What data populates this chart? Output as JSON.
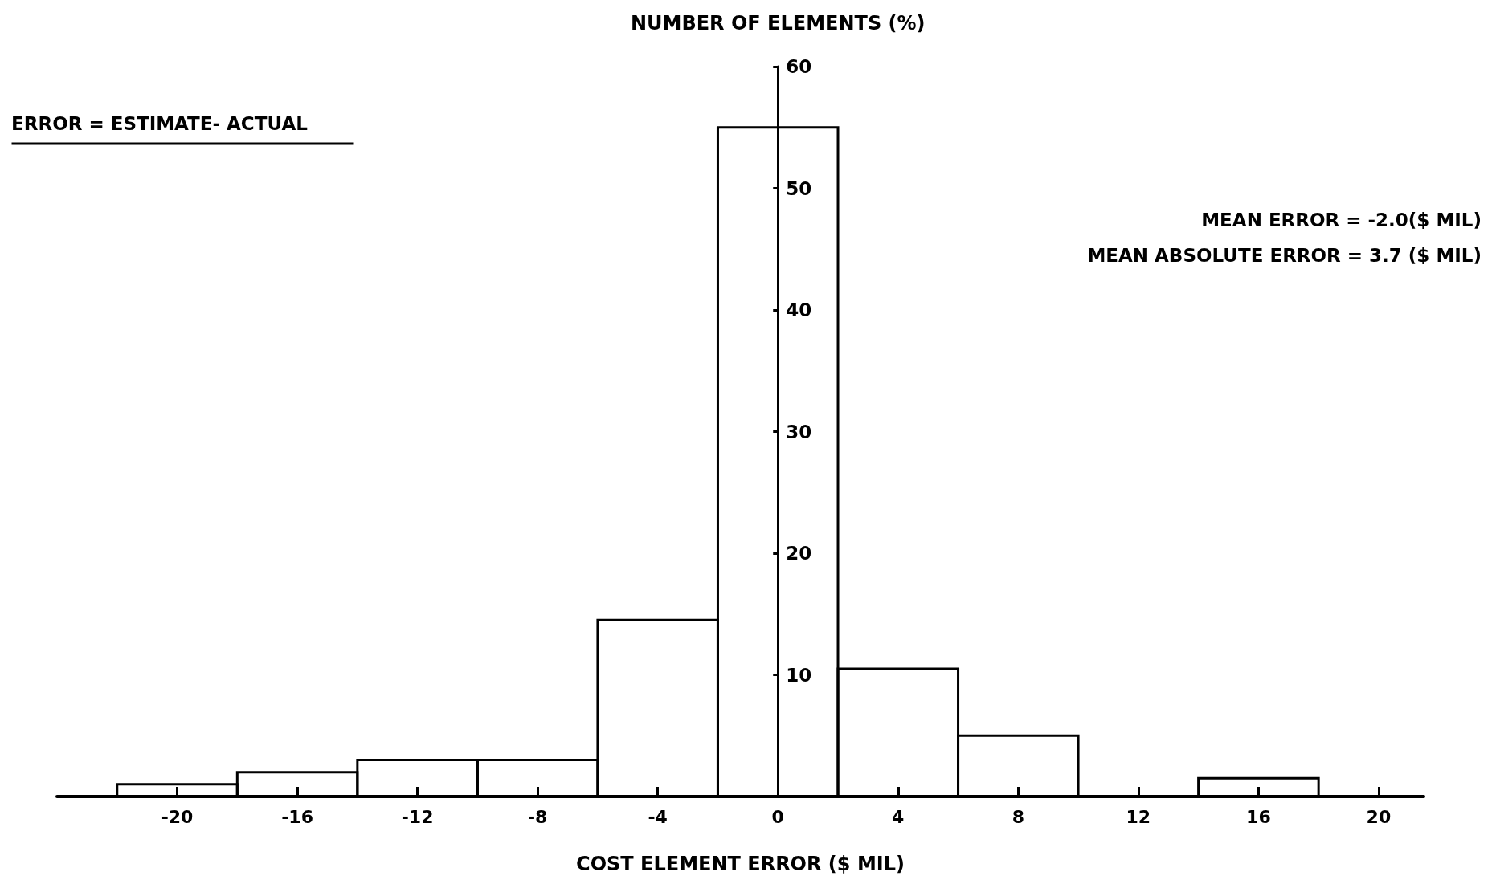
{
  "chart_data": {
    "type": "histogram",
    "xlabel": "COST ELEMENT ERROR ($ MIL)",
    "ylabel": "NUMBER OF ELEMENTS (%)",
    "bins": [
      -22,
      -18,
      -14,
      -10,
      -6,
      -2,
      2,
      6,
      10,
      14,
      18
    ],
    "values": [
      1,
      2,
      3,
      3,
      14.5,
      55,
      10.5,
      5,
      0,
      1.5
    ],
    "color": "#000000",
    "xlim": [
      -24,
      21.5
    ],
    "xticks": [
      -20,
      -16,
      -12,
      -8,
      -4,
      0,
      4,
      8,
      12,
      16,
      20
    ],
    "ylim": [
      0,
      60
    ],
    "yticks": [
      10,
      20,
      30,
      40,
      50,
      60
    ],
    "annotations": [
      "ERROR = ESTIMATE- ACTUAL",
      "MEAN ERROR = -2.0($ MIL)",
      "MEAN ABSOLUTE ERROR = 3.7 ($ MIL)"
    ]
  }
}
